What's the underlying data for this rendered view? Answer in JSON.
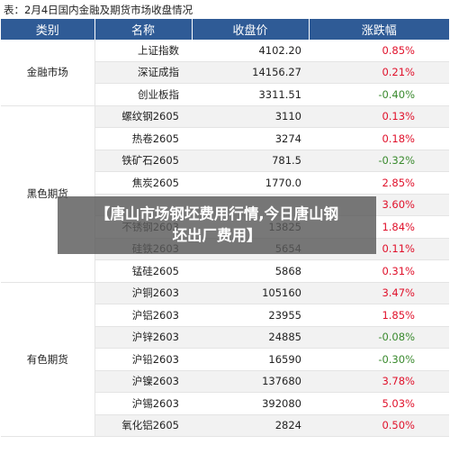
{
  "caption": "表：2月4日国内金融及期货市场收盘情况",
  "columns": [
    "类别",
    "名称",
    "收盘价",
    "涨跌幅"
  ],
  "colors": {
    "header": "#2f5b96",
    "up": "#e0112b",
    "down": "#3a8a2e"
  },
  "categories": [
    {
      "label": "金融市场",
      "rows": [
        {
          "name": "上证指数",
          "price": "4102.20",
          "change": "0.85%",
          "dir": "up"
        },
        {
          "name": "深证成指",
          "price": "14156.27",
          "change": "0.21%",
          "dir": "up"
        },
        {
          "name": "创业板指",
          "price": "3311.51",
          "change": "-0.40%",
          "dir": "down"
        }
      ]
    },
    {
      "label": "黑色期货",
      "rows": [
        {
          "name": "螺纹钢2605",
          "price": "3110",
          "change": "0.13%",
          "dir": "up"
        },
        {
          "name": "热卷2605",
          "price": "3274",
          "change": "0.18%",
          "dir": "up"
        },
        {
          "name": "铁矿石2605",
          "price": "781.5",
          "change": "-0.32%",
          "dir": "down"
        },
        {
          "name": "焦炭2605",
          "price": "1770.0",
          "change": "2.85%",
          "dir": "up"
        },
        {
          "name": "",
          "price": "",
          "change": "3.60%",
          "dir": "up"
        },
        {
          "name": "不锈钢2603",
          "price": "13825",
          "change": "1.84%",
          "dir": "up"
        },
        {
          "name": "硅铁2603",
          "price": "5654",
          "change": "0.11%",
          "dir": "up"
        },
        {
          "name": "锰硅2605",
          "price": "5868",
          "change": "0.31%",
          "dir": "up"
        }
      ]
    },
    {
      "label": "有色期货",
      "rows": [
        {
          "name": "沪铜2603",
          "price": "105160",
          "change": "3.47%",
          "dir": "up"
        },
        {
          "name": "沪铝2603",
          "price": "23955",
          "change": "1.85%",
          "dir": "up"
        },
        {
          "name": "沪锌2603",
          "price": "24885",
          "change": "-0.08%",
          "dir": "down"
        },
        {
          "name": "沪铅2603",
          "price": "16590",
          "change": "-0.30%",
          "dir": "down"
        },
        {
          "name": "沪镍2603",
          "price": "137680",
          "change": "3.78%",
          "dir": "up"
        },
        {
          "name": "沪锡2603",
          "price": "392080",
          "change": "5.03%",
          "dir": "up"
        },
        {
          "name": "氧化铝2605",
          "price": "2824",
          "change": "0.50%",
          "dir": "up"
        }
      ]
    }
  ],
  "overlay": {
    "line1": "【唐山市场钢坯费用行情,今日唐山钢",
    "line2": "坯出厂费用】"
  }
}
